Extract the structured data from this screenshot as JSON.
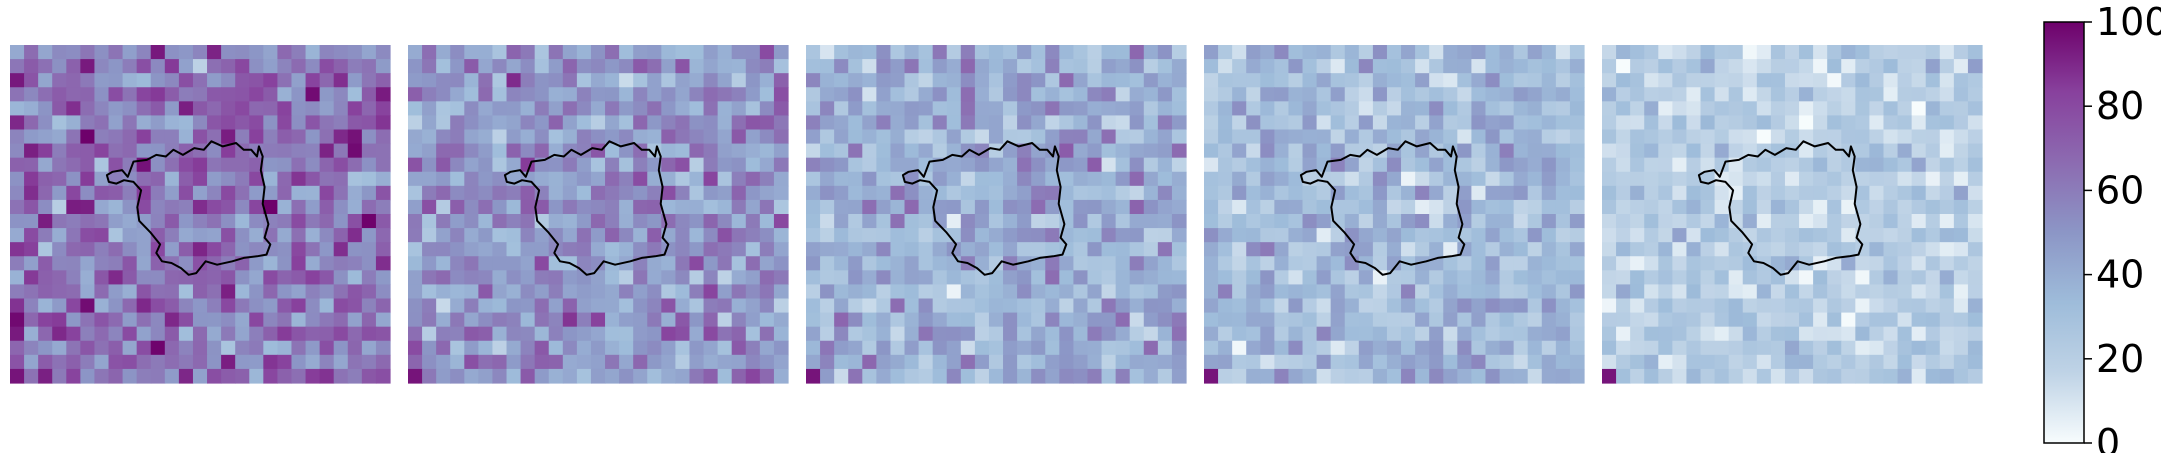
{
  "chart_data": {
    "type": "heatmap",
    "panel_count": 5,
    "grid": {
      "rows": 24,
      "cols": 27
    },
    "panels": [
      {
        "mean_value": 62,
        "spread": 16,
        "seed": 11
      },
      {
        "mean_value": 50,
        "spread": 14,
        "seed": 23
      },
      {
        "mean_value": 39,
        "spread": 13,
        "seed": 37
      },
      {
        "mean_value": 32,
        "spread": 11,
        "seed": 41
      },
      {
        "mean_value": 22,
        "spread": 9,
        "seed": 59
      }
    ],
    "colorbar": {
      "colormap": "BuPu",
      "range": [
        0,
        100
      ],
      "ticks": [
        {
          "value": 0,
          "label": "0"
        },
        {
          "value": 20,
          "label": "20"
        },
        {
          "value": 40,
          "label": "40"
        },
        {
          "value": 60,
          "label": "60"
        },
        {
          "value": 80,
          "label": "80"
        },
        {
          "value": 100,
          "label": "100"
        }
      ]
    },
    "overlay": "region boundary outline (black)",
    "xlabel": "",
    "ylabel": "",
    "title": ""
  },
  "colors": {
    "outline": "#000000",
    "colormap_stops": [
      "#f7fcfd",
      "#bfd3e6",
      "#9ebcda",
      "#8c96c6",
      "#8c6bb1",
      "#88419d",
      "#6e016b"
    ]
  }
}
